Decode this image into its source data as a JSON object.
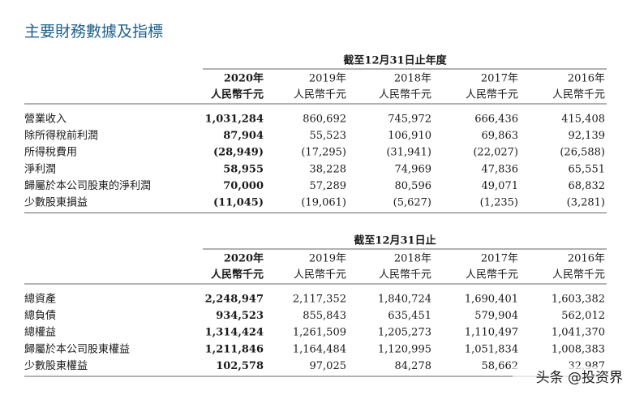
{
  "title": "主要財務數據及指標",
  "unit": "人民幣千元",
  "years": [
    "2020年",
    "2019年",
    "2018年",
    "2017年",
    "2016年"
  ],
  "tables": [
    {
      "period": "截至12月31日止年度",
      "rows": [
        {
          "label": "營業收入",
          "values": [
            "1,031,284",
            "860,692",
            "745,972",
            "666,436",
            "415,408"
          ]
        },
        {
          "label": "除所得稅前利潤",
          "values": [
            "87,904",
            "55,523",
            "106,910",
            "69,863",
            "92,139"
          ]
        },
        {
          "label": "所得稅費用",
          "values": [
            "(28,949)",
            "(17,295)",
            "(31,941)",
            "(22,027)",
            "(26,588)"
          ]
        },
        {
          "label": "淨利潤",
          "values": [
            "58,955",
            "38,228",
            "74,969",
            "47,836",
            "65,551"
          ]
        },
        {
          "label": "歸屬於本公司股東的淨利潤",
          "values": [
            "70,000",
            "57,289",
            "80,596",
            "49,071",
            "68,832"
          ]
        },
        {
          "label": "少數股東損益",
          "values": [
            "(11,045)",
            "(19,061)",
            "(5,627)",
            "(1,235)",
            "(3,281)"
          ]
        }
      ]
    },
    {
      "period": "截至12月31日止",
      "rows": [
        {
          "label": "總資產",
          "values": [
            "2,248,947",
            "2,117,352",
            "1,840,724",
            "1,690,401",
            "1,603,382"
          ]
        },
        {
          "label": "總負債",
          "values": [
            "934,523",
            "855,843",
            "635,451",
            "579,904",
            "562,012"
          ]
        },
        {
          "label": "總權益",
          "values": [
            "1,314,424",
            "1,261,509",
            "1,205,273",
            "1,110,497",
            "1,041,370"
          ]
        },
        {
          "label": "歸屬於本公司股東權益",
          "values": [
            "1,211,846",
            "1,164,484",
            "1,120,995",
            "1,051,834",
            "1,008,383"
          ]
        },
        {
          "label": "少數股東權益",
          "values": [
            "102,578",
            "97,025",
            "84,278",
            "58,662",
            "32,987"
          ]
        }
      ]
    }
  ],
  "watermark": "头条 @投资界"
}
